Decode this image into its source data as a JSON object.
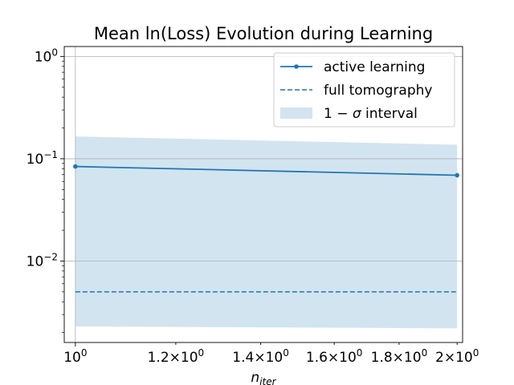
{
  "chart_data": {
    "type": "line",
    "title": "Mean ln(Loss) Evolution during Learning",
    "xlabel": "n",
    "xlabel_sub": "iter",
    "ylabel": "",
    "xscale": "log",
    "yscale": "log",
    "xlim": [
      0.98,
      2.02
    ],
    "ylim": [
      0.0016,
      1.25
    ],
    "grid": true,
    "legend_position": "top-right",
    "x_ticks": [
      {
        "value": 1.0,
        "mantissa": "",
        "exp": "0",
        "label": "10^0"
      },
      {
        "value": 1.2,
        "mantissa": "1.2",
        "exp": "0",
        "label": "1.2×10^0"
      },
      {
        "value": 1.4,
        "mantissa": "1.4",
        "exp": "0",
        "label": "1.4×10^0"
      },
      {
        "value": 1.6,
        "mantissa": "1.6",
        "exp": "0",
        "label": "1.6×10^0"
      },
      {
        "value": 1.8,
        "mantissa": "1.8",
        "exp": "0",
        "label": "1.8×10^0"
      },
      {
        "value": 2.0,
        "mantissa": "2",
        "exp": "0",
        "label": "2×10^0"
      }
    ],
    "y_ticks": [
      {
        "value": 1,
        "exp": "0",
        "label": "10^0"
      },
      {
        "value": 0.1,
        "exp": "−1",
        "label": "10^-1"
      },
      {
        "value": 0.01,
        "exp": "−2",
        "label": "10^-2"
      }
    ],
    "series": [
      {
        "name": "active learning",
        "style": "solid-with-markers",
        "color": "#1f77b4",
        "x": [
          1,
          2
        ],
        "y": [
          0.084,
          0.069
        ]
      },
      {
        "name": "full tomography",
        "style": "dashed",
        "color": "#1f77b4",
        "x": [
          1,
          2
        ],
        "y": [
          0.005,
          0.005
        ]
      },
      {
        "name": "1 − σ interval",
        "style": "band",
        "color": "#1f77b4",
        "x": [
          1,
          2
        ],
        "lower": [
          0.0023,
          0.0022
        ],
        "upper": [
          0.165,
          0.137
        ]
      }
    ],
    "legend": [
      {
        "label": "active learning",
        "kind": "line-marker"
      },
      {
        "label": "full tomography",
        "kind": "dashed"
      },
      {
        "label_pre": "1 − ",
        "label_sym": "σ",
        "label_post": " interval",
        "kind": "patch"
      }
    ]
  }
}
